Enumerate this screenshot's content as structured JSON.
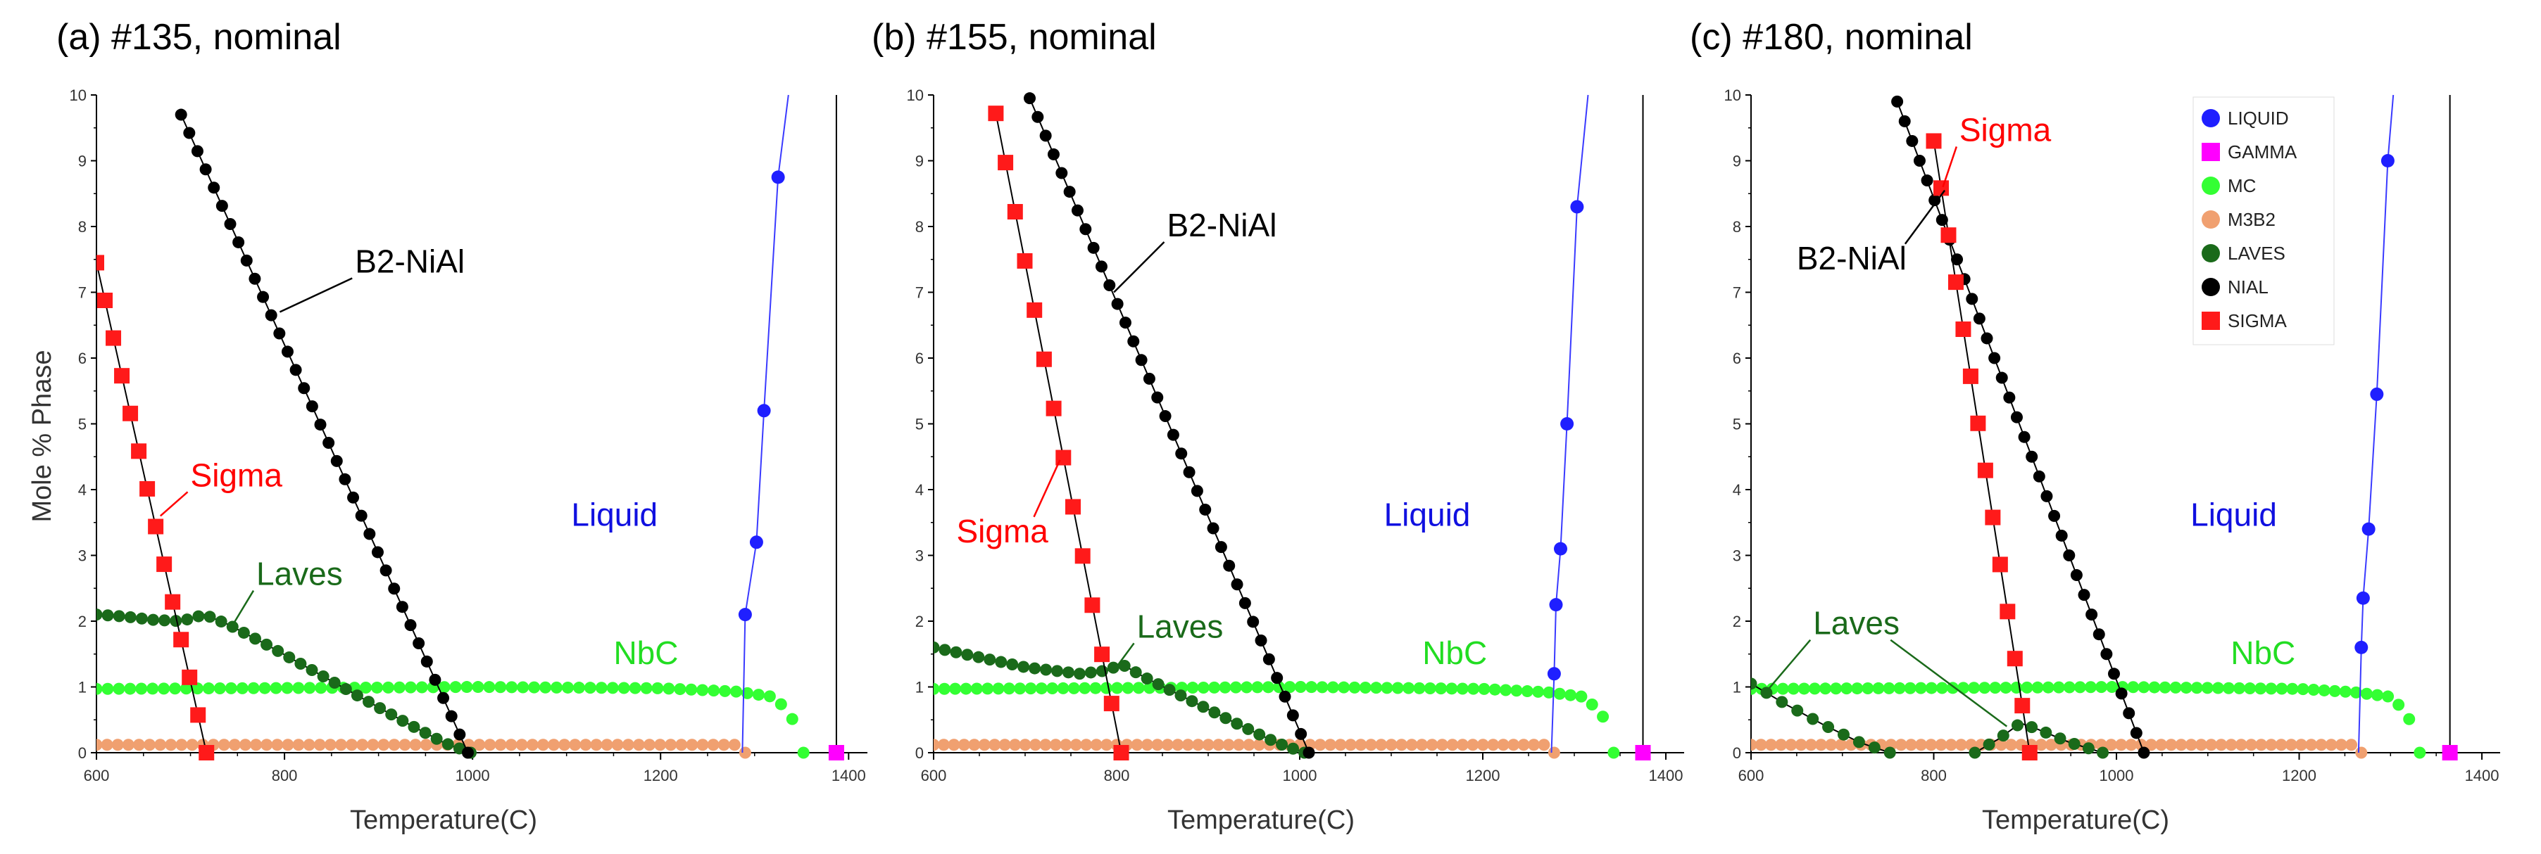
{
  "colors": {
    "LIQUID": "#1f1fff",
    "LIQUID_line": "#3a3aff",
    "GAMMA": "#ff00ff",
    "MC": "#33ff33",
    "M3B2": "#f0a070",
    "LAVES": "#1a6a1a",
    "NIAL": "#000000",
    "SIGMA": "#ff1a1a",
    "axis": "#000000",
    "annot_liquid": "#1010e0",
    "annot_sigma": "#ff0000",
    "annot_laves": "#1a6a1a",
    "annot_nbc": "#22dd22",
    "annot_b2": "#000000"
  },
  "legend": {
    "entries": [
      {
        "key": "LIQUID",
        "label": "LIQUID",
        "shape": "circle"
      },
      {
        "key": "GAMMA",
        "label": "GAMMA",
        "shape": "square"
      },
      {
        "key": "MC",
        "label": "MC",
        "shape": "circle"
      },
      {
        "key": "M3B2",
        "label": "M3B2",
        "shape": "circle"
      },
      {
        "key": "LAVES",
        "label": "LAVES",
        "shape": "circle"
      },
      {
        "key": "NIAL",
        "label": "NIAL",
        "shape": "circle"
      },
      {
        "key": "SIGMA",
        "label": "SIGMA",
        "shape": "square"
      }
    ]
  },
  "chart_data": [
    {
      "type": "line",
      "title": "(a) #135, nominal",
      "xlabel": "Temperature(C)",
      "ylabel": "Mole % Phase",
      "xlim": [
        600,
        1420
      ],
      "ylim": [
        0,
        10
      ],
      "xticks": [
        "600",
        "800",
        "1000",
        "1200",
        "1400"
      ],
      "yticks": [
        "0",
        "1",
        "2",
        "3",
        "4",
        "5",
        "6",
        "7",
        "8",
        "9",
        "10"
      ],
      "vline_x": 1387,
      "series": [
        {
          "key": "SIGMA",
          "name": "SIGMA",
          "marker": "square",
          "linear": [
            [
              600,
              7.45
            ],
            [
              717,
              0
            ]
          ],
          "count": 14
        },
        {
          "key": "NIAL",
          "name": "NIAL",
          "marker": "circle",
          "linear": [
            [
              690,
              9.7
            ],
            [
              995,
              0
            ]
          ],
          "count": 36
        },
        {
          "key": "LAVES",
          "name": "LAVES",
          "marker": "circle",
          "points": [
            [
              600,
              2.1
            ],
            [
              630,
              2.07
            ],
            [
              660,
              2.02
            ],
            [
              690,
              2.0
            ],
            [
              715,
              2.1
            ],
            [
              740,
              1.95
            ],
            [
              780,
              1.65
            ],
            [
              830,
              1.25
            ],
            [
              880,
              0.85
            ],
            [
              930,
              0.45
            ],
            [
              970,
              0.15
            ],
            [
              998,
              0
            ]
          ],
          "count": 34
        },
        {
          "key": "MC",
          "name": "MC",
          "marker": "circle",
          "points": [
            [
              600,
              0.97
            ],
            [
              900,
              0.99
            ],
            [
              1000,
              1.0
            ],
            [
              1200,
              0.98
            ],
            [
              1280,
              0.93
            ],
            [
              1320,
              0.85
            ],
            [
              1338,
              0.6
            ],
            [
              1345,
              0.3
            ],
            [
              1352,
              0
            ]
          ],
          "count": 64
        },
        {
          "key": "M3B2",
          "name": "M3B2",
          "marker": "circle",
          "points": [
            [
              600,
              0.12
            ],
            [
              1288,
              0.12
            ],
            [
              1290,
              0
            ]
          ],
          "count": 62
        },
        {
          "key": "LIQUID",
          "name": "LIQUID",
          "marker": "circle",
          "points": [
            [
              1287,
              0
            ],
            [
              1290,
              2.1
            ],
            [
              1302,
              3.2
            ],
            [
              1310,
              5.2
            ],
            [
              1325,
              8.75
            ],
            [
              1336,
              10
            ]
          ],
          "markers": [
            [
              1290,
              2.1
            ],
            [
              1302,
              3.2
            ],
            [
              1310,
              5.2
            ],
            [
              1325,
              8.75
            ]
          ]
        },
        {
          "key": "GAMMA",
          "name": "GAMMA",
          "marker": "square",
          "markers": [
            [
              1387,
              0
            ]
          ]
        }
      ],
      "annotations": [
        {
          "text": "B2-NiAl",
          "color": "annot_b2",
          "at": [
            875,
            7.3
          ],
          "arrow_to": [
            795,
            6.7
          ]
        },
        {
          "text": "Sigma",
          "color": "annot_sigma",
          "at": [
            700,
            4.05
          ],
          "arrow_to": [
            668,
            3.6
          ]
        },
        {
          "text": "Laves",
          "color": "annot_laves",
          "at": [
            770,
            2.55
          ],
          "arrow_to": [
            744,
            1.92
          ]
        },
        {
          "text": "NbC",
          "color": "annot_nbc",
          "at": [
            1150,
            1.35
          ]
        },
        {
          "text": "Liquid",
          "color": "annot_liquid",
          "at": [
            1105,
            3.45
          ]
        }
      ]
    },
    {
      "type": "line",
      "title": "(b) #155, nominal",
      "xlabel": "Temperature(C)",
      "ylabel": "",
      "xlim": [
        600,
        1420
      ],
      "ylim": [
        0,
        10
      ],
      "xticks": [
        "600",
        "800",
        "1000",
        "1200",
        "1400"
      ],
      "yticks": [
        "0",
        "1",
        "2",
        "3",
        "4",
        "5",
        "6",
        "7",
        "8",
        "9",
        "10"
      ],
      "vline_x": 1375,
      "series": [
        {
          "key": "SIGMA",
          "name": "SIGMA",
          "marker": "square",
          "linear": [
            [
              668,
              9.72
            ],
            [
              805,
              0
            ]
          ],
          "count": 14
        },
        {
          "key": "NIAL",
          "name": "NIAL",
          "marker": "circle",
          "linear": [
            [
              705,
              9.95
            ],
            [
              1010,
              0
            ]
          ],
          "count": 36
        },
        {
          "key": "LAVES",
          "name": "LAVES",
          "marker": "circle",
          "points": [
            [
              600,
              1.6
            ],
            [
              650,
              1.45
            ],
            [
              700,
              1.3
            ],
            [
              760,
              1.2
            ],
            [
              790,
              1.25
            ],
            [
              805,
              1.35
            ],
            [
              830,
              1.15
            ],
            [
              880,
              0.8
            ],
            [
              930,
              0.45
            ],
            [
              975,
              0.15
            ],
            [
              1005,
              0
            ]
          ],
          "count": 34
        },
        {
          "key": "MC",
          "name": "MC",
          "marker": "circle",
          "points": [
            [
              600,
              0.97
            ],
            [
              900,
              0.99
            ],
            [
              1000,
              1.0
            ],
            [
              1200,
              0.97
            ],
            [
              1270,
              0.92
            ],
            [
              1310,
              0.85
            ],
            [
              1330,
              0.6
            ],
            [
              1337,
              0.3
            ],
            [
              1343,
              0
            ]
          ],
          "count": 64
        },
        {
          "key": "M3B2",
          "name": "M3B2",
          "marker": "circle",
          "points": [
            [
              600,
              0.12
            ],
            [
              1276,
              0.12
            ],
            [
              1278,
              0
            ]
          ],
          "count": 62
        },
        {
          "key": "LIQUID",
          "name": "LIQUID",
          "marker": "circle",
          "points": [
            [
              1275,
              0
            ],
            [
              1278,
              1.2
            ],
            [
              1280,
              2.25
            ],
            [
              1285,
              3.1
            ],
            [
              1292,
              5.0
            ],
            [
              1303,
              8.3
            ],
            [
              1315,
              10
            ]
          ],
          "markers": [
            [
              1278,
              1.2
            ],
            [
              1280,
              2.25
            ],
            [
              1285,
              3.1
            ],
            [
              1292,
              5.0
            ],
            [
              1303,
              8.3
            ]
          ]
        },
        {
          "key": "GAMMA",
          "name": "GAMMA",
          "marker": "square",
          "markers": [
            [
              1375,
              0
            ]
          ]
        }
      ],
      "annotations": [
        {
          "text": "B2-NiAl",
          "color": "annot_b2",
          "at": [
            855,
            7.85
          ],
          "arrow_to": [
            797,
            7.0
          ]
        },
        {
          "text": "Sigma",
          "color": "annot_sigma",
          "at": [
            625,
            3.2
          ],
          "arrow_to": [
            738,
            4.45
          ]
        },
        {
          "text": "Laves",
          "color": "annot_laves",
          "at": [
            822,
            1.75
          ],
          "arrow_to": [
            797,
            1.25
          ]
        },
        {
          "text": "NbC",
          "color": "annot_nbc",
          "at": [
            1134,
            1.35
          ]
        },
        {
          "text": "Liquid",
          "color": "annot_liquid",
          "at": [
            1092,
            3.45
          ]
        }
      ]
    },
    {
      "type": "line",
      "title": "(c) #180, nominal",
      "xlabel": "Temperature(C)",
      "ylabel": "",
      "xlim": [
        600,
        1420
      ],
      "ylim": [
        0,
        10
      ],
      "xticks": [
        "600",
        "800",
        "1000",
        "1200",
        "1400"
      ],
      "yticks": [
        "0",
        "1",
        "2",
        "3",
        "4",
        "5",
        "6",
        "7",
        "8",
        "9",
        "10"
      ],
      "vline_x": 1365,
      "series": [
        {
          "key": "SIGMA",
          "name": "SIGMA",
          "marker": "square",
          "linear": [
            [
              800,
              9.3
            ],
            [
              905,
              0
            ]
          ],
          "count": 14
        },
        {
          "key": "NIAL",
          "name": "NIAL",
          "marker": "circle",
          "linear": [
            [
              760,
              9.9
            ],
            [
              1030,
              0
            ]
          ],
          "count": 34
        },
        {
          "key": "LAVES",
          "name": "LAVES",
          "marker": "circle",
          "points": [
            [
              600,
              1.05
            ],
            [
              640,
              0.72
            ],
            [
              680,
              0.42
            ],
            [
              720,
              0.15
            ],
            [
              752,
              0
            ]
          ],
          "count": 10
        },
        {
          "key": "LAVES",
          "name": "LAVES-2",
          "marker": "circle",
          "points": [
            [
              845,
              0
            ],
            [
              870,
              0.2
            ],
            [
              895,
              0.45
            ],
            [
              915,
              0.35
            ],
            [
              950,
              0.15
            ],
            [
              985,
              0
            ]
          ],
          "count": 10
        },
        {
          "key": "MC",
          "name": "MC",
          "marker": "circle",
          "points": [
            [
              600,
              0.97
            ],
            [
              900,
              0.99
            ],
            [
              1000,
              1.0
            ],
            [
              1200,
              0.97
            ],
            [
              1260,
              0.92
            ],
            [
              1300,
              0.85
            ],
            [
              1318,
              0.6
            ],
            [
              1326,
              0.3
            ],
            [
              1332,
              0
            ]
          ],
          "count": 64
        },
        {
          "key": "M3B2",
          "name": "M3B2",
          "marker": "circle",
          "points": [
            [
              600,
              0.12
            ],
            [
              1266,
              0.12
            ],
            [
              1268,
              0
            ]
          ],
          "count": 62
        },
        {
          "key": "LIQUID",
          "name": "LIQUID",
          "marker": "circle",
          "points": [
            [
              1265,
              0
            ],
            [
              1268,
              1.6
            ],
            [
              1270,
              2.35
            ],
            [
              1276,
              3.4
            ],
            [
              1285,
              5.45
            ],
            [
              1297,
              9.0
            ],
            [
              1303,
              10
            ]
          ],
          "markers": [
            [
              1268,
              1.6
            ],
            [
              1270,
              2.35
            ],
            [
              1276,
              3.4
            ],
            [
              1285,
              5.45
            ],
            [
              1297,
              9.0
            ]
          ]
        },
        {
          "key": "GAMMA",
          "name": "GAMMA",
          "marker": "square",
          "markers": [
            [
              1365,
              0
            ]
          ]
        }
      ],
      "annotations": [
        {
          "text": "Sigma",
          "color": "annot_sigma",
          "at": [
            828,
            9.3
          ],
          "arrow_to": [
            810,
            8.6
          ]
        },
        {
          "text": "B2-NiAl",
          "color": "annot_b2",
          "at": [
            650,
            7.35
          ],
          "arrow_to": [
            812,
            8.55
          ]
        },
        {
          "text": "Laves",
          "color": "annot_laves",
          "at": [
            668,
            1.8
          ],
          "arrow_to_list": [
            [
              618,
              0.95
            ],
            [
              880,
              0.4
            ]
          ]
        },
        {
          "text": "NbC",
          "color": "annot_nbc",
          "at": [
            1125,
            1.35
          ]
        },
        {
          "text": "Liquid",
          "color": "annot_liquid",
          "at": [
            1081,
            3.45
          ]
        }
      ]
    }
  ]
}
